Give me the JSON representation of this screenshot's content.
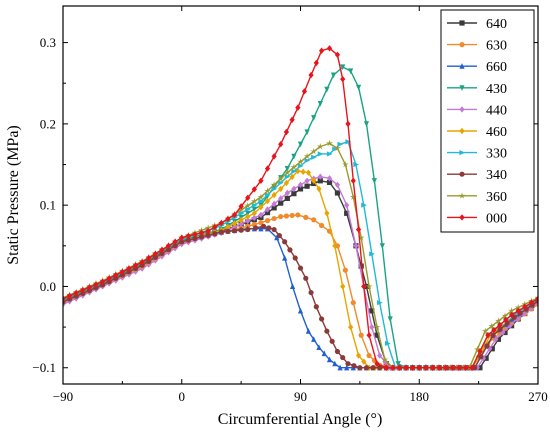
{
  "chart_data": {
    "type": "line",
    "xlabel": "Circumferential Angle (°)",
    "ylabel": "Static Pressure (MPa)",
    "xlim": [
      -90,
      270
    ],
    "ylim": [
      -0.12,
      0.345
    ],
    "x_ticks": [
      -90,
      0,
      90,
      180,
      270
    ],
    "x_tick_labels": [
      "−90",
      "0",
      "90",
      "180",
      "270"
    ],
    "y_ticks": [
      -0.1,
      0.0,
      0.1,
      0.2,
      0.3
    ],
    "y_tick_labels": [
      "−0.1",
      "0.0",
      "0.1",
      "0.2",
      "0.3"
    ],
    "grid": false,
    "legend_position": "top-right",
    "series": [
      {
        "name": "640",
        "color": "#3a3a3a",
        "marker": "square",
        "points": [
          [
            -90,
            -0.018
          ],
          [
            -60,
            0.003
          ],
          [
            -30,
            0.026
          ],
          [
            0,
            0.055
          ],
          [
            30,
            0.068
          ],
          [
            60,
            0.085
          ],
          [
            90,
            0.12
          ],
          [
            105,
            0.13
          ],
          [
            112,
            0.128
          ],
          [
            118,
            0.115
          ],
          [
            125,
            0.09
          ],
          [
            132,
            0.05
          ],
          [
            140,
            0.0
          ],
          [
            148,
            -0.06
          ],
          [
            155,
            -0.095
          ],
          [
            160,
            -0.1
          ],
          [
            180,
            -0.1
          ],
          [
            210,
            -0.1
          ],
          [
            226,
            -0.1
          ],
          [
            240,
            -0.065
          ],
          [
            255,
            -0.04
          ],
          [
            270,
            -0.02
          ]
        ]
      },
      {
        "name": "630",
        "color": "#f08a2c",
        "marker": "circle",
        "points": [
          [
            -90,
            -0.02
          ],
          [
            -60,
            0.001
          ],
          [
            -30,
            0.024
          ],
          [
            0,
            0.054
          ],
          [
            30,
            0.066
          ],
          [
            55,
            0.076
          ],
          [
            75,
            0.086
          ],
          [
            88,
            0.088
          ],
          [
            100,
            0.082
          ],
          [
            112,
            0.068
          ],
          [
            118,
            0.05
          ],
          [
            124,
            0.02
          ],
          [
            130,
            -0.02
          ],
          [
            136,
            -0.06
          ],
          [
            142,
            -0.085
          ],
          [
            150,
            -0.097
          ],
          [
            160,
            -0.1
          ],
          [
            180,
            -0.1
          ],
          [
            220,
            -0.1
          ],
          [
            232,
            -0.07
          ],
          [
            250,
            -0.045
          ],
          [
            270,
            -0.022
          ]
        ]
      },
      {
        "name": "660",
        "color": "#1f5fd1",
        "marker": "triangle",
        "points": [
          [
            -90,
            -0.018
          ],
          [
            -60,
            0.003
          ],
          [
            -30,
            0.027
          ],
          [
            0,
            0.056
          ],
          [
            30,
            0.067
          ],
          [
            50,
            0.071
          ],
          [
            65,
            0.071
          ],
          [
            72,
            0.06
          ],
          [
            78,
            0.035
          ],
          [
            84,
            0.0
          ],
          [
            90,
            -0.03
          ],
          [
            96,
            -0.055
          ],
          [
            104,
            -0.075
          ],
          [
            112,
            -0.09
          ],
          [
            120,
            -0.1
          ],
          [
            140,
            -0.1
          ],
          [
            180,
            -0.1
          ],
          [
            222,
            -0.1
          ],
          [
            236,
            -0.06
          ],
          [
            252,
            -0.04
          ],
          [
            270,
            -0.018
          ]
        ]
      },
      {
        "name": "430",
        "color": "#1aa383",
        "marker": "triangle-down",
        "points": [
          [
            -90,
            -0.017
          ],
          [
            -60,
            0.004
          ],
          [
            -30,
            0.028
          ],
          [
            0,
            0.057
          ],
          [
            30,
            0.07
          ],
          [
            60,
            0.1
          ],
          [
            80,
            0.145
          ],
          [
            95,
            0.19
          ],
          [
            105,
            0.225
          ],
          [
            115,
            0.26
          ],
          [
            122,
            0.27
          ],
          [
            128,
            0.265
          ],
          [
            134,
            0.245
          ],
          [
            140,
            0.2
          ],
          [
            146,
            0.13
          ],
          [
            152,
            0.05
          ],
          [
            158,
            -0.04
          ],
          [
            164,
            -0.095
          ],
          [
            170,
            -0.1
          ],
          [
            180,
            -0.1
          ],
          [
            220,
            -0.1
          ],
          [
            232,
            -0.06
          ],
          [
            250,
            -0.035
          ],
          [
            270,
            -0.017
          ]
        ]
      },
      {
        "name": "440",
        "color": "#c47ad4",
        "marker": "diamond",
        "points": [
          [
            -90,
            -0.022
          ],
          [
            -60,
            0.0
          ],
          [
            -30,
            0.022
          ],
          [
            0,
            0.052
          ],
          [
            30,
            0.066
          ],
          [
            60,
            0.088
          ],
          [
            80,
            0.115
          ],
          [
            95,
            0.13
          ],
          [
            105,
            0.135
          ],
          [
            112,
            0.133
          ],
          [
            118,
            0.125
          ],
          [
            125,
            0.1
          ],
          [
            132,
            0.05
          ],
          [
            138,
            0.0
          ],
          [
            144,
            -0.05
          ],
          [
            150,
            -0.085
          ],
          [
            158,
            -0.1
          ],
          [
            180,
            -0.1
          ],
          [
            224,
            -0.1
          ],
          [
            238,
            -0.065
          ],
          [
            254,
            -0.04
          ],
          [
            270,
            -0.02
          ]
        ]
      },
      {
        "name": "460",
        "color": "#e8a400",
        "marker": "diamond",
        "points": [
          [
            -90,
            -0.019
          ],
          [
            -60,
            0.002
          ],
          [
            -30,
            0.025
          ],
          [
            0,
            0.055
          ],
          [
            30,
            0.069
          ],
          [
            55,
            0.09
          ],
          [
            75,
            0.12
          ],
          [
            88,
            0.142
          ],
          [
            96,
            0.14
          ],
          [
            104,
            0.12
          ],
          [
            110,
            0.09
          ],
          [
            116,
            0.05
          ],
          [
            122,
            0.0
          ],
          [
            128,
            -0.05
          ],
          [
            134,
            -0.085
          ],
          [
            142,
            -0.1
          ],
          [
            160,
            -0.1
          ],
          [
            180,
            -0.1
          ],
          [
            220,
            -0.1
          ],
          [
            234,
            -0.06
          ],
          [
            252,
            -0.038
          ],
          [
            270,
            -0.018
          ]
        ]
      },
      {
        "name": "330",
        "color": "#22b9d6",
        "marker": "triangle-right",
        "points": [
          [
            -90,
            -0.016
          ],
          [
            -60,
            0.005
          ],
          [
            -30,
            0.029
          ],
          [
            0,
            0.058
          ],
          [
            30,
            0.075
          ],
          [
            60,
            0.105
          ],
          [
            80,
            0.135
          ],
          [
            95,
            0.155
          ],
          [
            105,
            0.163
          ],
          [
            112,
            0.163
          ],
          [
            120,
            0.175
          ],
          [
            126,
            0.178
          ],
          [
            132,
            0.15
          ],
          [
            138,
            0.1
          ],
          [
            144,
            0.04
          ],
          [
            150,
            -0.02
          ],
          [
            156,
            -0.07
          ],
          [
            162,
            -0.1
          ],
          [
            180,
            -0.1
          ],
          [
            222,
            -0.1
          ],
          [
            236,
            -0.06
          ],
          [
            252,
            -0.035
          ],
          [
            270,
            -0.016
          ]
        ]
      },
      {
        "name": "340",
        "color": "#8b3a3a",
        "marker": "circle",
        "points": [
          [
            -90,
            -0.019
          ],
          [
            -60,
            0.002
          ],
          [
            -30,
            0.026
          ],
          [
            0,
            0.055
          ],
          [
            30,
            0.067
          ],
          [
            50,
            0.07
          ],
          [
            62,
            0.074
          ],
          [
            70,
            0.07
          ],
          [
            78,
            0.055
          ],
          [
            86,
            0.035
          ],
          [
            94,
            0.01
          ],
          [
            102,
            -0.025
          ],
          [
            110,
            -0.055
          ],
          [
            118,
            -0.08
          ],
          [
            126,
            -0.095
          ],
          [
            135,
            -0.1
          ],
          [
            180,
            -0.1
          ],
          [
            222,
            -0.1
          ],
          [
            236,
            -0.06
          ],
          [
            252,
            -0.038
          ],
          [
            270,
            -0.018
          ]
        ]
      },
      {
        "name": "360",
        "color": "#9a9a2a",
        "marker": "star",
        "points": [
          [
            -90,
            -0.014
          ],
          [
            -60,
            0.007
          ],
          [
            -30,
            0.031
          ],
          [
            0,
            0.06
          ],
          [
            30,
            0.078
          ],
          [
            60,
            0.11
          ],
          [
            80,
            0.14
          ],
          [
            95,
            0.16
          ],
          [
            105,
            0.172
          ],
          [
            112,
            0.176
          ],
          [
            118,
            0.17
          ],
          [
            124,
            0.15
          ],
          [
            130,
            0.11
          ],
          [
            136,
            0.06
          ],
          [
            142,
            0.0
          ],
          [
            148,
            -0.05
          ],
          [
            154,
            -0.09
          ],
          [
            160,
            -0.1
          ],
          [
            180,
            -0.1
          ],
          [
            218,
            -0.1
          ],
          [
            230,
            -0.055
          ],
          [
            250,
            -0.03
          ],
          [
            270,
            -0.014
          ]
        ]
      },
      {
        "name": "000",
        "color": "#e8141c",
        "marker": "diamond",
        "points": [
          [
            -90,
            -0.015
          ],
          [
            -60,
            0.006
          ],
          [
            -30,
            0.03
          ],
          [
            0,
            0.06
          ],
          [
            20,
            0.068
          ],
          [
            40,
            0.088
          ],
          [
            60,
            0.13
          ],
          [
            75,
            0.175
          ],
          [
            88,
            0.22
          ],
          [
            98,
            0.26
          ],
          [
            106,
            0.29
          ],
          [
            112,
            0.293
          ],
          [
            118,
            0.285
          ],
          [
            122,
            0.255
          ],
          [
            126,
            0.2
          ],
          [
            130,
            0.13
          ],
          [
            134,
            0.07
          ],
          [
            138,
            0.0
          ],
          [
            142,
            -0.06
          ],
          [
            148,
            -0.095
          ],
          [
            155,
            -0.1
          ],
          [
            180,
            -0.1
          ],
          [
            220,
            -0.1
          ],
          [
            232,
            -0.06
          ],
          [
            250,
            -0.035
          ],
          [
            270,
            -0.015
          ]
        ]
      }
    ]
  }
}
